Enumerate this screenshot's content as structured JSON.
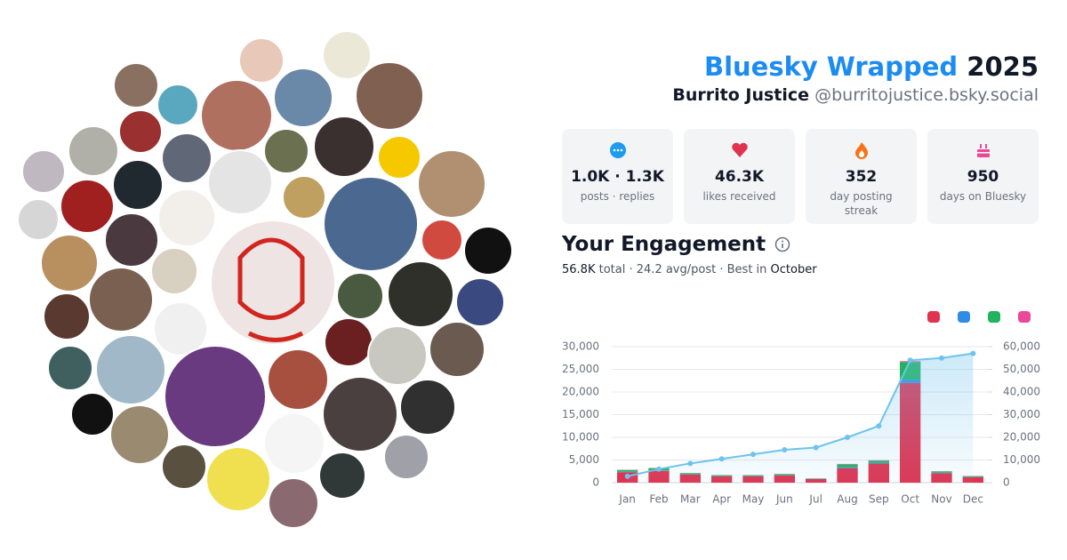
{
  "header": {
    "title": "Bluesky Wrapped",
    "year": "2025",
    "name": "Burrito Justice",
    "handle": "@burritojustice.bsky.social"
  },
  "stats": [
    {
      "value": "1.0K · 1.3K",
      "label": "posts · replies"
    },
    {
      "value": "46.3K",
      "label": "likes received"
    },
    {
      "value": "352",
      "label": "day posting streak"
    },
    {
      "value": "950",
      "label": "days on Bluesky"
    }
  ],
  "engagement": {
    "title": "Your Engagement",
    "total": "56.8K",
    "total_label": "total",
    "average": "24.2 avg/post",
    "best_label": "Best in",
    "best": "October"
  },
  "chart_data": {
    "type": "stacked-bar-line",
    "categories": [
      "Jan",
      "Feb",
      "Mar",
      "Apr",
      "May",
      "Jun",
      "Jul",
      "Aug",
      "Sep",
      "Oct",
      "Nov",
      "Dec"
    ],
    "series": [
      {
        "color": "#e0334f",
        "values": [
          2300,
          2600,
          1800,
          1400,
          1400,
          1600,
          800,
          3200,
          4200,
          22000,
          2100,
          1200
        ]
      },
      {
        "color": "#2e8be6",
        "values": [
          100,
          100,
          50,
          50,
          50,
          50,
          30,
          150,
          150,
          700,
          80,
          50
        ]
      },
      {
        "color": "#22b35e",
        "values": [
          400,
          500,
          250,
          200,
          200,
          250,
          100,
          700,
          500,
          3900,
          300,
          200
        ]
      },
      {
        "color": "#ec4899",
        "values": [
          50,
          50,
          30,
          30,
          30,
          30,
          20,
          80,
          80,
          200,
          40,
          30
        ]
      },
      {
        "color": "#6ec3ec",
        "axis": "y2",
        "kind": "line",
        "values": [
          2800,
          6000,
          8500,
          10500,
          12500,
          14500,
          15500,
          20000,
          25000,
          54000,
          55000,
          57000
        ]
      }
    ],
    "ylim": [
      0,
      30000
    ],
    "yticks": [
      0,
      {
        "value": 5000,
        "label": "5,000"
      },
      {
        "value": 10000,
        "label": "10,000"
      },
      {
        "value": 15000,
        "label": "15,000"
      },
      {
        "value": 20000,
        "label": "20,000"
      },
      {
        "value": 25000,
        "label": "25,000"
      },
      {
        "value": 30000,
        "label": "30,000"
      }
    ],
    "y2lim": [
      0,
      60000
    ],
    "y2ticks": [
      0,
      {
        "value": 10000,
        "label": "10,000"
      },
      {
        "value": 20000,
        "label": "20,000"
      },
      {
        "value": 30000,
        "label": "30,000"
      },
      {
        "value": 40000,
        "label": "40,000"
      },
      {
        "value": 50000,
        "label": "50,000"
      },
      {
        "value": 60000,
        "label": "60,000"
      }
    ],
    "grid": true
  }
}
